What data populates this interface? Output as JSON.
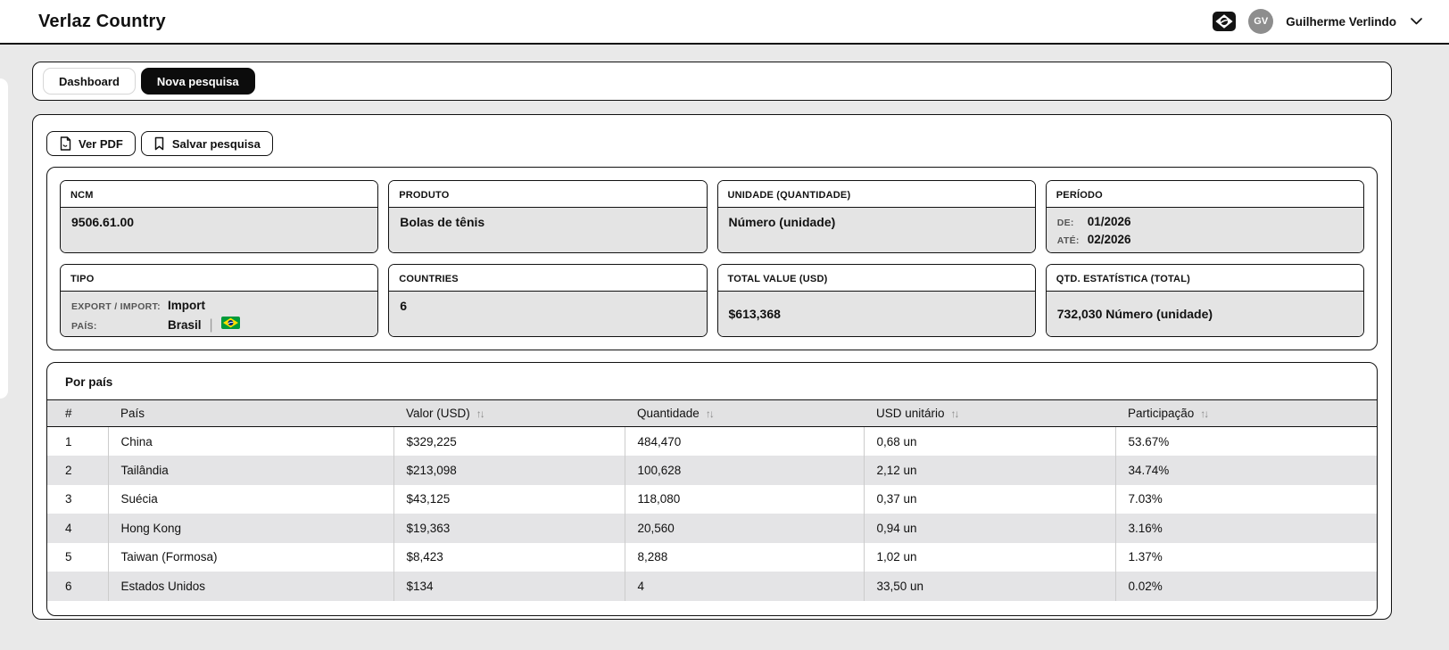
{
  "header": {
    "title": "Verlaz Country",
    "user": {
      "initials": "GV",
      "name": "Guilherme Verlindo"
    }
  },
  "tabs": [
    {
      "label": "Dashboard",
      "active": false
    },
    {
      "label": "Nova pesquisa",
      "active": true
    }
  ],
  "actions": {
    "view_pdf": "Ver PDF",
    "save_search": "Salvar pesquisa"
  },
  "summary_cards": {
    "ncm": {
      "label": "NCM",
      "value": "9506.61.00"
    },
    "produto": {
      "label": "PRODUTO",
      "value": "Bolas de tênis"
    },
    "unidade": {
      "label": "UNIDADE (QUANTIDADE)",
      "value": "Número (unidade)"
    },
    "periodo": {
      "label": "PERÍODO",
      "de_label": "DE:",
      "de_value": "01/2026",
      "ate_label": "ATÉ:",
      "ate_value": "02/2026"
    },
    "tipo": {
      "label": "TIPO",
      "flow_label": "EXPORT / IMPORT:",
      "flow_value": "Import",
      "pais_label": "PAÍS:",
      "pais_value": "Brasil",
      "separator": "|"
    },
    "countries": {
      "label": "COUNTRIES",
      "value": "6"
    },
    "total_value": {
      "label": "TOTAL VALUE (USD)",
      "value": "$613,368"
    },
    "qtd_estatistica": {
      "label": "QTD. ESTATÍSTICA (TOTAL)",
      "value": "732,030 Número (unidade)"
    }
  },
  "table": {
    "title": "Por país",
    "sort_icon": "↑↓",
    "columns": [
      "#",
      "País",
      "Valor (USD)",
      "Quantidade",
      "USD unitário",
      "Participação"
    ],
    "sortable": [
      false,
      false,
      true,
      true,
      true,
      true
    ],
    "rows": [
      [
        "1",
        "China",
        "$329,225",
        "484,470",
        "0,68 un",
        "53.67%"
      ],
      [
        "2",
        "Tailândia",
        "$213,098",
        "100,628",
        "2,12 un",
        "34.74%"
      ],
      [
        "3",
        "Suécia",
        "$43,125",
        "118,080",
        "0,37 un",
        "7.03%"
      ],
      [
        "4",
        "Hong Kong",
        "$19,363",
        "20,560",
        "0,94 un",
        "3.16%"
      ],
      [
        "5",
        "Taiwan (Formosa)",
        "$8,423",
        "8,288",
        "1,02 un",
        "1.37%"
      ],
      [
        "6",
        "Estados Unidos",
        "$134",
        "4",
        "33,50 un",
        "0.02%"
      ]
    ]
  },
  "colors": {
    "accent": "#111111",
    "card_body_bg": "#e4e4e4",
    "table_stripe": "#e4e4e6",
    "avatar_bg": "#8d8d8d",
    "flag_green": "#009b3a",
    "flag_yellow": "#ffdf00",
    "flag_blue": "#002776"
  }
}
